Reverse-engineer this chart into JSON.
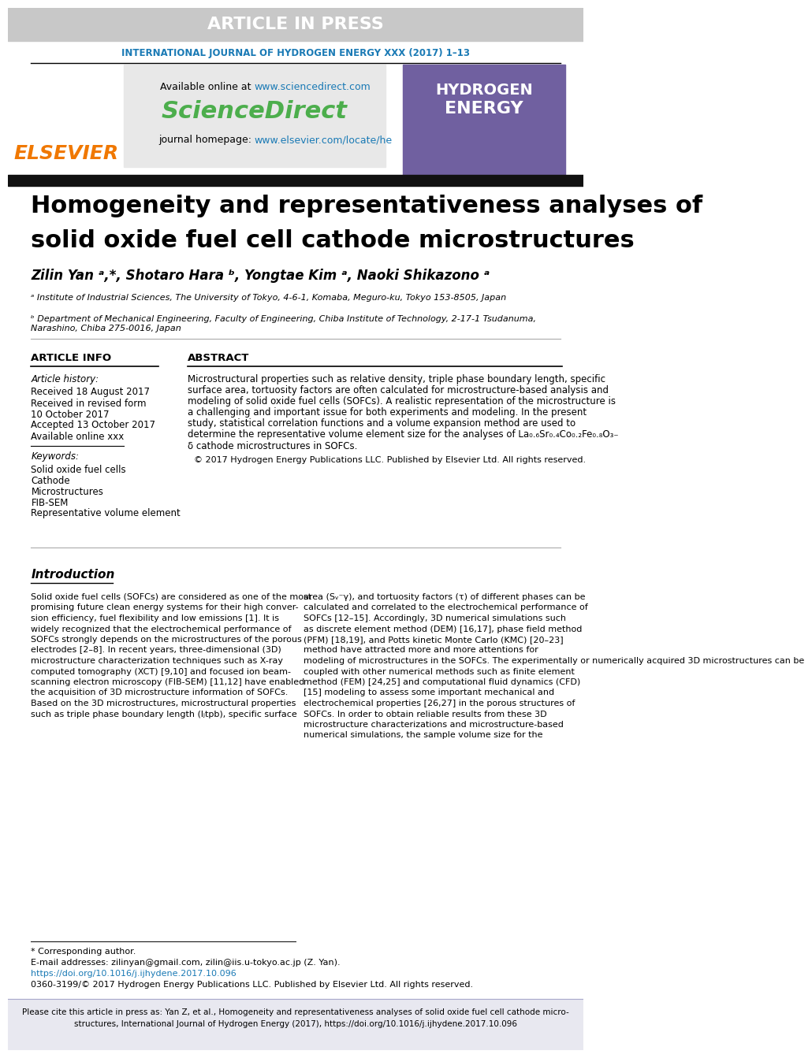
{
  "article_in_press_text": "ARTICLE IN PRESS",
  "journal_name": "INTERNATIONAL JOURNAL OF HYDROGEN ENERGY XXX (2017) 1–13",
  "available_online": "Available online at ",
  "sciencedirect_url": "www.sciencedirect.com",
  "sciencedirect_text": "ScienceDirect",
  "journal_homepage_label": "journal homepage: ",
  "journal_homepage_url": "www.elsevier.com/locate/he",
  "elsevier_text": "ELSEVIER",
  "paper_title_line1": "Homogeneity and representativeness analyses of",
  "paper_title_line2": "solid oxide fuel cell cathode microstructures",
  "authors": "Zilin Yan ᵃ,*, Shotaro Hara ᵇ, Yongtae Kim ᵃ, Naoki Shikazono ᵃ",
  "affil_a": "ᵃ Institute of Industrial Sciences, The University of Tokyo, 4-6-1, Komaba, Meguro-ku, Tokyo 153-8505, Japan",
  "affil_b": "ᵇ Department of Mechanical Engineering, Faculty of Engineering, Chiba Institute of Technology, 2-17-1 Tsudanuma,\nNarashino, Chiba 275-0016, Japan",
  "article_info_header": "ARTICLE INFO",
  "abstract_header": "ABSTRACT",
  "article_history_label": "Article history:",
  "received1": "Received 18 August 2017",
  "received2": "Received in revised form",
  "received2b": "10 October 2017",
  "accepted": "Accepted 13 October 2017",
  "available_xxx": "Available online xxx",
  "keywords_label": "Keywords:",
  "keyword1": "Solid oxide fuel cells",
  "keyword2": "Cathode",
  "keyword3": "Microstructures",
  "keyword4": "FIB-SEM",
  "keyword5": "Representative volume element",
  "abstract_text": "Microstructural properties such as relative density, triple phase boundary length, specific\nsurface area, tortuosity factors are often calculated for microstructure-based analysis and\nmodeling of solid oxide fuel cells (SOFCs). A realistic representation of the microstructure is\na challenging and important issue for both experiments and modeling. In the present\nstudy, statistical correlation functions and a volume expansion method are used to\ndetermine the representative volume element size for the analyses of La₀.₆Sr₀.₄Co₀.₂Fe₀.₈O₃₋\nδ cathode microstructures in SOFCs.",
  "copyright_text": "© 2017 Hydrogen Energy Publications LLC. Published by Elsevier Ltd. All rights reserved.",
  "intro_header": "Introduction",
  "intro_text_left": "Solid oxide fuel cells (SOFCs) are considered as one of the most\npromising future clean energy systems for their high conver-\nsion efficiency, fuel flexibility and low emissions [1]. It is\nwidely recognized that the electrochemical performance of\nSOFCs strongly depends on the microstructures of the porous\nelectrodes [2–8]. In recent years, three-dimensional (3D)\nmicrostructure characterization techniques such as X-ray\ncomputed tomography (XCT) [9,10] and focused ion beam-\nscanning electron microscopy (FIB-SEM) [11,12] have enabled\nthe acquisition of 3D microstructure information of SOFCs.\nBased on the 3D microstructures, microstructural properties\nsuch as triple phase boundary length (lⱼtpb), specific surface",
  "intro_text_right": "area (Sᵥ⁻γ), and tortuosity factors (τ) of different phases can be\ncalculated and correlated to the electrochemical performance of\nSOFCs [12–15]. Accordingly, 3D numerical simulations such\nas discrete element method (DEM) [16,17], phase field method\n(PFM) [18,19], and Potts kinetic Monte Carlo (KMC) [20–23]\nmethod have attracted more and more attentions for\nmodeling of microstructures in the SOFCs. The experimentally or numerically acquired 3D microstructures can be\ncoupled with other numerical methods such as finite element\nmethod (FEM) [24,25] and computational fluid dynamics (CFD)\n[15] modeling to assess some important mechanical and\nelectrochemical properties [26,27] in the porous structures of\nSOFCs. In order to obtain reliable results from these 3D\nmicrostructure characterizations and microstructure-based\nnumerical simulations, the sample volume size for the",
  "footnote_star": "* Corresponding author.",
  "footnote_email": "E-mail addresses: zilinyan@gmail.com, zilin@iis.u-tokyo.ac.jp (Z. Yan).",
  "footnote_doi": "https://doi.org/10.1016/j.ijhydene.2017.10.096",
  "footnote_issn": "0360-3199/© 2017 Hydrogen Energy Publications LLC. Published by Elsevier Ltd. All rights reserved.",
  "bottom_bar_text": "Please cite this article in press as: Yan Z, et al., Homogeneity and representativeness analyses of solid oxide fuel cell cathode micro-\nstructures, International Journal of Hydrogen Energy (2017), https://doi.org/10.1016/j.ijhydene.2017.10.096",
  "header_bg": "#c8c8c8",
  "header_text_color": "#ffffff",
  "journal_name_color": "#1a7ab5",
  "elsevier_color": "#f07800",
  "sciencedirect_color": "#4cae4c",
  "sciencedirect_url_color": "#1a7ab5",
  "journal_url_color": "#1a7ab5",
  "title_bar_color": "#111111",
  "doi_color": "#1a7ab5",
  "email_url_color": "#1a7ab5",
  "page_bg": "#ffffff"
}
